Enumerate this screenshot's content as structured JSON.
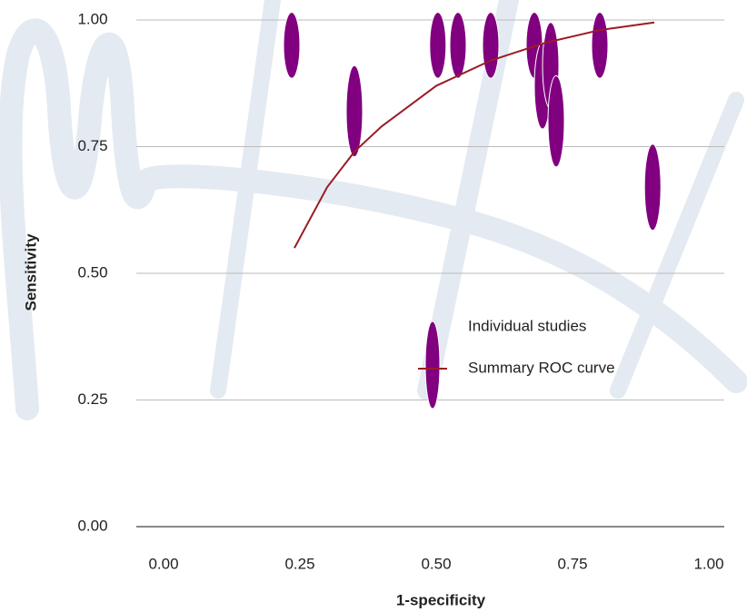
{
  "chart_data": {
    "type": "scatter",
    "x_label": "1-specificity",
    "y_label": "Sensitivity",
    "xlim": [
      0,
      1
    ],
    "ylim": [
      0,
      1
    ],
    "xticks": [
      {
        "value": 0,
        "label": "0.00"
      },
      {
        "value": 0.25,
        "label": "0.25"
      },
      {
        "value": 0.5,
        "label": "0.50"
      },
      {
        "value": 0.75,
        "label": "0.75"
      },
      {
        "value": 1,
        "label": "1.00"
      }
    ],
    "yticks": [
      {
        "value": 0,
        "label": "0.00"
      },
      {
        "value": 0.25,
        "label": "0.25"
      },
      {
        "value": 0.5,
        "label": "0.50"
      },
      {
        "value": 0.75,
        "label": "0.75"
      },
      {
        "value": 1,
        "label": "1.00"
      }
    ],
    "grid": true,
    "series": [
      {
        "name": "Individual studies",
        "type": "scatter",
        "color": "#800080",
        "x": [
          0.235,
          0.35,
          0.503,
          0.54,
          0.6,
          0.68,
          0.695,
          0.71,
          0.72,
          0.8,
          0.897
        ],
        "values": [
          0.95,
          0.82,
          0.95,
          0.95,
          0.95,
          0.95,
          0.87,
          0.91,
          0.8,
          0.95,
          0.67
        ],
        "size": [
          0.065,
          0.09,
          0.065,
          0.065,
          0.065,
          0.065,
          0.085,
          0.085,
          0.09,
          0.065,
          0.085
        ]
      },
      {
        "name": "Summary ROC curve",
        "type": "line",
        "color": "#9b1c24",
        "x": [
          0.24,
          0.3,
          0.35,
          0.4,
          0.5,
          0.6,
          0.7,
          0.8,
          0.9
        ],
        "values": [
          0.55,
          0.67,
          0.74,
          0.79,
          0.87,
          0.92,
          0.955,
          0.98,
          0.995
        ]
      }
    ]
  }
}
